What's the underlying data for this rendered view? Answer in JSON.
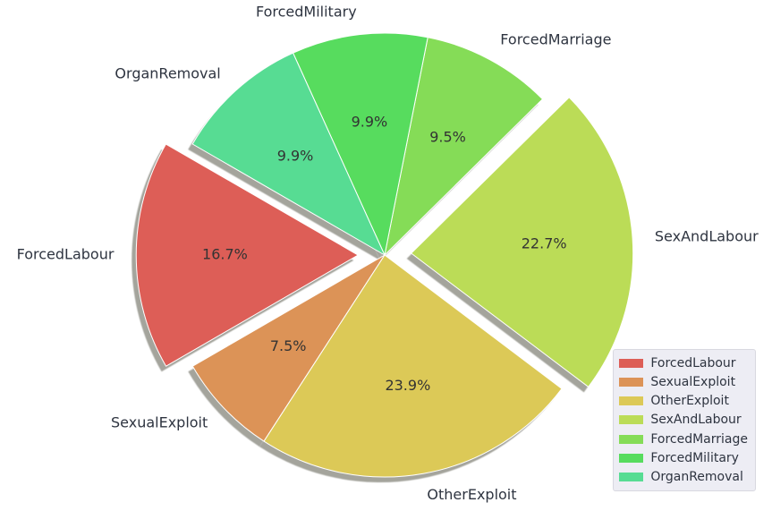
{
  "chart_data": {
    "type": "pie",
    "title": "",
    "slices": [
      {
        "label": "ForcedLabour",
        "value": 16.7,
        "pct_label": "16.7%",
        "color": "#dd5e57",
        "exploded": true
      },
      {
        "label": "SexualExploit",
        "value": 7.5,
        "pct_label": "7.5%",
        "color": "#dc9357",
        "exploded": false
      },
      {
        "label": "OtherExploit",
        "value": 23.9,
        "pct_label": "23.9%",
        "color": "#dcc957",
        "exploded": false
      },
      {
        "label": "SexAndLabour",
        "value": 22.7,
        "pct_label": "22.7%",
        "color": "#bbdc57",
        "exploded": true
      },
      {
        "label": "ForcedMarriage",
        "value": 9.5,
        "pct_label": "9.5%",
        "color": "#85dc57",
        "exploded": false
      },
      {
        "label": "ForcedMilitary",
        "value": 9.9,
        "pct_label": "9.9%",
        "color": "#57dc5e",
        "exploded": false
      },
      {
        "label": "OrganRemoval",
        "value": 9.9,
        "pct_label": "9.9%",
        "color": "#57dc93",
        "exploded": false
      }
    ],
    "start_angle_deg": 150,
    "direction": "counterclockwise",
    "shadow": true,
    "legend_position": "bottom-right"
  }
}
